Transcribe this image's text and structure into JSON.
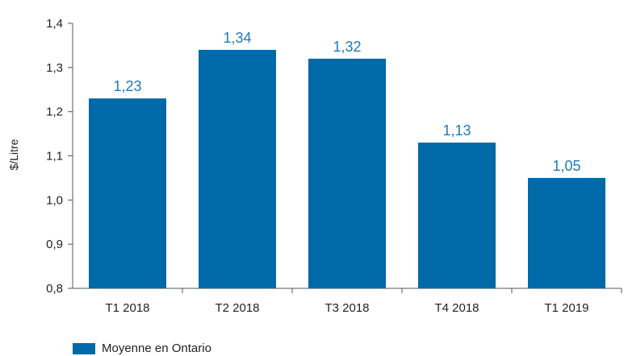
{
  "chart_data": {
    "type": "bar",
    "categories": [
      "T1 2018",
      "T2 2018",
      "T3 2018",
      "T4 2018",
      "T1 2019"
    ],
    "values": [
      1.23,
      1.34,
      1.32,
      1.13,
      1.05
    ],
    "value_labels": [
      "1,23",
      "1,34",
      "1,32",
      "1,13",
      "1,05"
    ],
    "ylabel": "$/Litre",
    "xlabel": "",
    "ylim": [
      0.8,
      1.4
    ],
    "yticks": [
      0.8,
      0.9,
      1.0,
      1.1,
      1.2,
      1.3,
      1.4
    ],
    "ytick_labels": [
      "0,8",
      "0,9",
      "1,0",
      "1,1",
      "1,2",
      "1,3",
      "1,4"
    ],
    "series": [
      {
        "name": "Moyenne en Ontario",
        "values": [
          1.23,
          1.34,
          1.32,
          1.13,
          1.05
        ]
      }
    ],
    "legend_position": "bottom-left",
    "grid": false
  },
  "colors": {
    "bar": "#0069a7",
    "data_label": "#1f7ab8",
    "axis": "#555555"
  }
}
